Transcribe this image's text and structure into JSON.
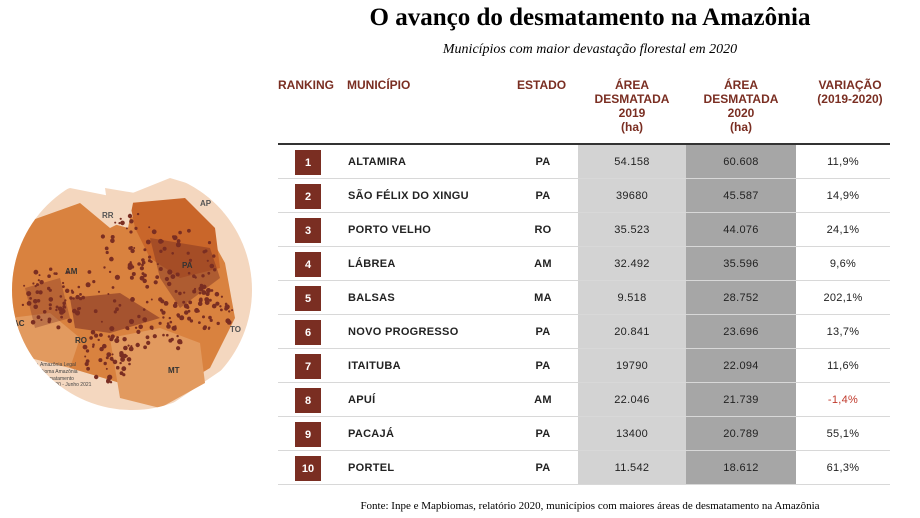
{
  "title": "O avanço do desmatamento na Amazônia",
  "subtitle": "Municípios com maior devastação florestal em 2020",
  "map": {
    "state_labels": [
      "RR",
      "AP",
      "AM",
      "PA",
      "AC",
      "RO",
      "MT",
      "TO"
    ],
    "legend": [
      "Amazônia Legal",
      "Bioma Amazônia",
      "Desmatamento",
      "ago 2020 - Junho 2021"
    ]
  },
  "table": {
    "headers": {
      "ranking": "RANKING",
      "municipio": "MUNICÍPIO",
      "estado": "ESTADO",
      "area2019": [
        "ÁREA",
        "DESMATADA",
        "2019",
        "(ha)"
      ],
      "area2020": [
        "ÁREA",
        "DESMATADA",
        "2020",
        "(ha)"
      ],
      "variacao": [
        "VARIAÇÃO",
        "(2019-2020)"
      ]
    },
    "rows": [
      {
        "rank": "1",
        "municipio": "ALTAMIRA",
        "estado": "PA",
        "a2019": "54.158",
        "a2020": "60.608",
        "variacao": "11,9%"
      },
      {
        "rank": "2",
        "municipio": "SÃO FÉLIX DO XINGU",
        "estado": "PA",
        "a2019": "39680",
        "a2020": "45.587",
        "variacao": "14,9%"
      },
      {
        "rank": "3",
        "municipio": "PORTO VELHO",
        "estado": "RO",
        "a2019": "35.523",
        "a2020": "44.076",
        "variacao": "24,1%"
      },
      {
        "rank": "4",
        "municipio": "LÁBREA",
        "estado": "AM",
        "a2019": "32.492",
        "a2020": "35.596",
        "variacao": "9,6%"
      },
      {
        "rank": "5",
        "municipio": "BALSAS",
        "estado": "MA",
        "a2019": "9.518",
        "a2020": "28.752",
        "variacao": "202,1%"
      },
      {
        "rank": "6",
        "municipio": "NOVO PROGRESSO",
        "estado": "PA",
        "a2019": "20.841",
        "a2020": "23.696",
        "variacao": "13,7%"
      },
      {
        "rank": "7",
        "municipio": "ITAITUBA",
        "estado": "PA",
        "a2019": "19790",
        "a2020": "22.094",
        "variacao": "11,6%"
      },
      {
        "rank": "8",
        "municipio": "APUÍ",
        "estado": "AM",
        "a2019": "22.046",
        "a2020": "21.739",
        "variacao": "-1,4%"
      },
      {
        "rank": "9",
        "municipio": "PACAJÁ",
        "estado": "PA",
        "a2019": "13400",
        "a2020": "20.789",
        "variacao": "55,1%"
      },
      {
        "rank": "10",
        "municipio": "PORTEL",
        "estado": "PA",
        "a2019": "11.542",
        "a2020": "18.612",
        "variacao": "61,3%"
      }
    ]
  },
  "source": "Fonte: Inpe e Mapbiomas, relatório 2020, municípios com maiores áreas de desmatamento na Amazônia",
  "colors": {
    "accent": "#7a2e22",
    "col2019": "#d3d3d3",
    "col2020": "#a6a6a6",
    "negative": "#c0392b",
    "map_orange": "#d9823f",
    "map_light": "#f4d7bf"
  }
}
